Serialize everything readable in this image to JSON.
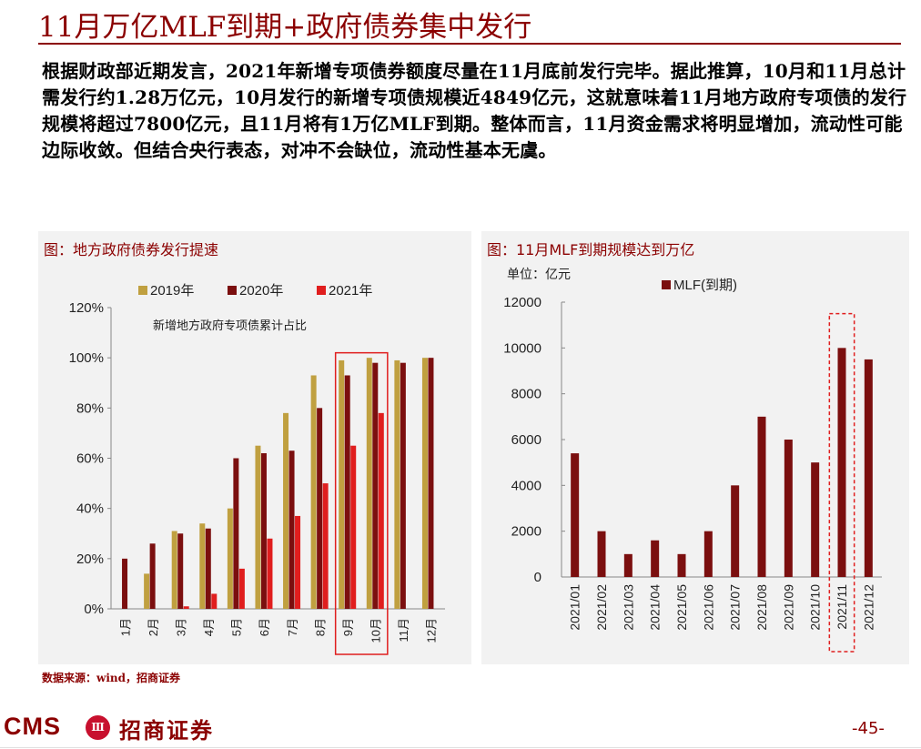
{
  "slide": {
    "title": "11月万亿MLF到期+政府债券集中发行",
    "body": "根据财政部近期发言，2021年新增专项债券额度尽量在11月底前发行完毕。据此推算，10月和11月总计需发行约1.28万亿元，10月发行的新增专项债规模近4849亿元，这就意味着11月地方政府专项债的发行规模将超过7800亿元，且11月将有1万亿MLF到期。整体而言，11月资金需求将明显增加，流动性可能边际收敛。但结合央行表态，对冲不会缺位，流动性基本无虞。",
    "source": "数据来源：wind，招商证券",
    "page_number": "-45-",
    "logo_cms": "CMS",
    "logo_mark": "Ⅲ",
    "logo_cn": "招商证券"
  },
  "colors": {
    "brand": "#8B0000",
    "panel_bg": "#f2f2f2",
    "c2019": "#C0A040",
    "c2020": "#7B0F0F",
    "c2021": "#E01E1E",
    "highlight": "#E01E1E"
  },
  "chart_data": [
    {
      "type": "bar",
      "panel_title": "图：地方政府债券发行提速",
      "annotation": "新增地方政府专项债累计占比",
      "categories": [
        "1月",
        "2月",
        "3月",
        "4月",
        "5月",
        "6月",
        "7月",
        "8月",
        "9月",
        "10月",
        "11月",
        "12月"
      ],
      "series": [
        {
          "name": "2019年",
          "color": "#C0A040",
          "values": [
            0,
            14,
            31,
            34,
            40,
            65,
            78,
            93,
            99,
            100,
            99,
            100
          ]
        },
        {
          "name": "2020年",
          "color": "#7B0F0F",
          "values": [
            20,
            26,
            30,
            32,
            60,
            62,
            63,
            80,
            93,
            98,
            98,
            100
          ]
        },
        {
          "name": "2021年",
          "color": "#E01E1E",
          "values": [
            0,
            0,
            1,
            6,
            16,
            28,
            37,
            50,
            65,
            78,
            null,
            null
          ]
        }
      ],
      "yticks": [
        "0%",
        "20%",
        "40%",
        "60%",
        "80%",
        "100%",
        "120%"
      ],
      "ylim": [
        0,
        120
      ],
      "highlight_categories": [
        "9月",
        "10月"
      ],
      "legend_position": "top"
    },
    {
      "type": "bar",
      "panel_title": "图：11月MLF到期规模达到万亿",
      "unit_label": "单位：亿元",
      "categories": [
        "2021/01",
        "2021/02",
        "2021/03",
        "2021/04",
        "2021/05",
        "2021/06",
        "2021/07",
        "2021/08",
        "2021/09",
        "2021/10",
        "2021/11",
        "2021/12"
      ],
      "series": [
        {
          "name": "MLF(到期)",
          "color": "#7B0F0F",
          "values": [
            5400,
            2000,
            1000,
            1600,
            1000,
            2000,
            4000,
            7000,
            6000,
            5000,
            10000,
            9500
          ]
        }
      ],
      "yticks": [
        "0",
        "2000",
        "4000",
        "6000",
        "8000",
        "10000",
        "12000"
      ],
      "ylim": [
        0,
        12000
      ],
      "highlight_categories": [
        "2021/11"
      ],
      "legend_position": "top-right"
    }
  ]
}
